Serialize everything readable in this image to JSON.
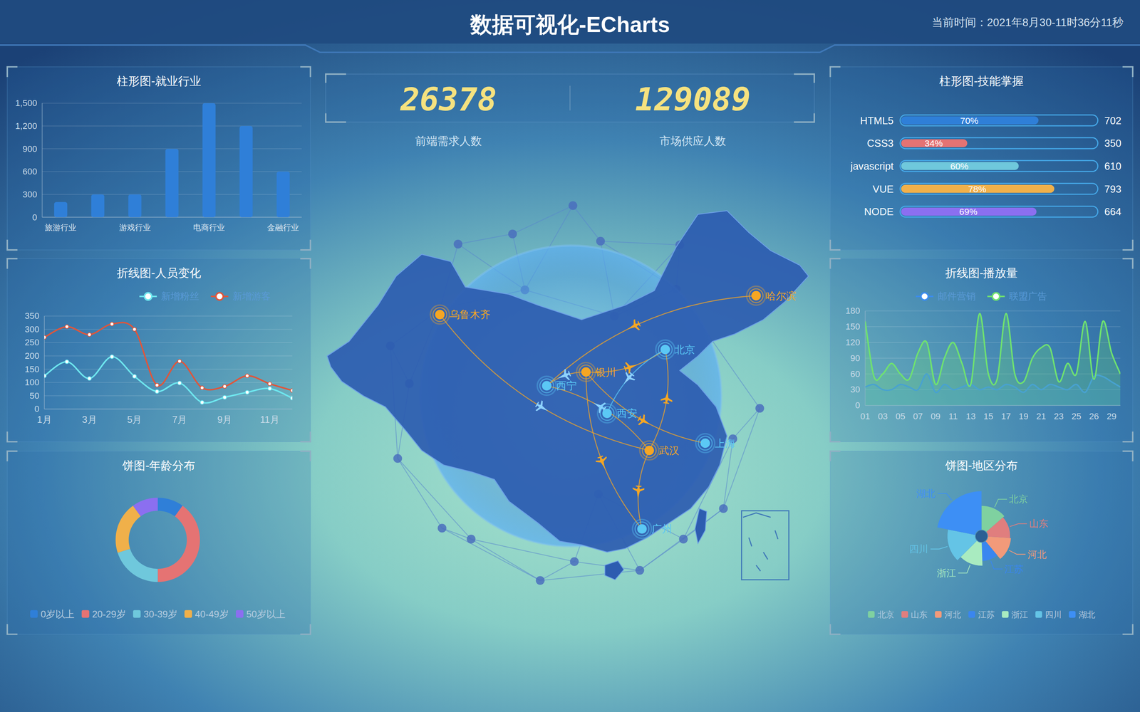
{
  "header": {
    "title": "数据可视化-ECharts",
    "time": "当前时间：2021年8月30-11时36分11秒"
  },
  "kpis": [
    {
      "value": 26378,
      "label": "前端需求人数"
    },
    {
      "value": 129089,
      "label": "市场供应人数"
    }
  ],
  "chart_data": [
    {
      "type": "bar",
      "title": "柱形图-就业行业",
      "categories": [
        "旅游行业",
        null,
        "游戏行业",
        null,
        "电商行业",
        null,
        "金融行业"
      ],
      "values": [
        200,
        300,
        300,
        900,
        1500,
        1200,
        600
      ],
      "color": "#2f7fd8",
      "ylim": [
        0,
        1500
      ],
      "yticks": [
        0,
        300,
        600,
        900,
        {
          "value": 1200,
          "label": "1,200"
        },
        {
          "value": 1500,
          "label": "1,500"
        }
      ],
      "grid": true
    },
    {
      "type": "line",
      "title": "折线图-人员变化",
      "categories": [
        "1月",
        null,
        "3月",
        null,
        "5月",
        null,
        "7月",
        null,
        "9月",
        null,
        "11月",
        null
      ],
      "series": [
        {
          "name": "新增粉丝",
          "color": "#6ee7ef",
          "values": [
            125,
            178,
            115,
            197,
            123,
            66,
            98,
            25,
            44,
            63,
            77,
            41
          ]
        },
        {
          "name": "新增游客",
          "color": "#e0553a",
          "values": [
            270,
            310,
            280,
            320,
            300,
            90,
            180,
            80,
            85,
            125,
            95,
            70
          ]
        }
      ],
      "ylim": [
        0,
        350
      ],
      "yticks": [
        0,
        50,
        100,
        150,
        200,
        250,
        300,
        350
      ],
      "grid": true,
      "legend": "top",
      "marker": "circle"
    },
    {
      "type": "pie",
      "title": "饼图-年龄分布",
      "categories": [
        "0岁以上",
        "20-29岁",
        "30-39岁",
        "40-49岁",
        "50岁以上"
      ],
      "values": [
        10,
        40,
        20,
        20,
        10
      ],
      "colors": [
        "#2f7fd8",
        "#e57373",
        "#6fc8dc",
        "#f0b04a",
        "#8b6ff0"
      ],
      "legend": "bottom"
    },
    {
      "type": "bar",
      "title": "柱形图-技能掌握",
      "orientation": "horizontal",
      "categories": [
        "HTML5",
        "CSS3",
        "javascript",
        "VUE",
        "NODE"
      ],
      "values": [
        70,
        34,
        60,
        78,
        69
      ],
      "value_labels": [
        "70%",
        "34%",
        "60%",
        "78%",
        "69%"
      ],
      "counts": [
        702,
        350,
        610,
        793,
        664
      ],
      "colors": [
        "#2f7fd8",
        "#e57373",
        "#6fc8dc",
        "#f0b04a",
        "#8b6ff0"
      ],
      "xlim": [
        0,
        100
      ],
      "tick_labels": "y",
      "data_labels": true
    },
    {
      "type": "area",
      "title": "折线图-播放量",
      "categories": [
        "01",
        null,
        "03",
        null,
        "05",
        null,
        "07",
        null,
        "09",
        null,
        "11",
        null,
        "13",
        null,
        "15",
        null,
        "17",
        null,
        "19",
        null,
        "21",
        null,
        "23",
        null,
        "25",
        null,
        "26",
        null,
        "29",
        null
      ],
      "series": [
        {
          "name": "邮件营销",
          "color": "#3b8cf0",
          "values": [
            35,
            40,
            30,
            30,
            40,
            35,
            30,
            60,
            25,
            40,
            30,
            35,
            40,
            30,
            35,
            30,
            40,
            35,
            25,
            40,
            30,
            40,
            35,
            30,
            40,
            25,
            55,
            55,
            45,
            35
          ]
        },
        {
          "name": "联盟广告",
          "color": "#6fe26f",
          "values": [
            160,
            55,
            60,
            80,
            60,
            50,
            100,
            120,
            40,
            90,
            120,
            80,
            40,
            175,
            60,
            50,
            175,
            60,
            45,
            90,
            110,
            110,
            45,
            80,
            60,
            160,
            50,
            160,
            100,
            60
          ]
        }
      ],
      "ylim": [
        0,
        180
      ],
      "yticks": [
        0,
        30,
        60,
        90,
        120,
        150,
        180
      ],
      "grid": true,
      "legend": "top"
    },
    {
      "type": "rose",
      "title": "饼图-地区分布",
      "categories": [
        "北京",
        "山东",
        "河北",
        "江苏",
        "浙江",
        "四川",
        "湖北"
      ],
      "values": [
        26,
        24,
        25,
        20,
        25,
        30,
        42
      ],
      "colors": [
        "#7fd1a0",
        "#e07e7e",
        "#f29a7a",
        "#3a86ef",
        "#a9ebc0",
        "#64c4e6",
        "#3d8ff5"
      ],
      "legend": "bottom"
    }
  ],
  "map": {
    "cities": [
      {
        "name": "乌鲁木齐",
        "color": "#f5a623"
      },
      {
        "name": "哈尔滨",
        "color": "#f5a623"
      },
      {
        "name": "北京",
        "color": "#5bc8f5"
      },
      {
        "name": "银川",
        "color": "#f5a623"
      },
      {
        "name": "西宁",
        "color": "#5bc8f5"
      },
      {
        "name": "西安",
        "color": "#5bc8f5"
      },
      {
        "name": "武汉",
        "color": "#f5a623"
      },
      {
        "name": "上海",
        "color": "#5bc8f5"
      },
      {
        "name": "广州",
        "color": "#5bc8f5"
      }
    ],
    "routes": [
      {
        "from": "乌鲁木齐",
        "to": "武汉"
      },
      {
        "from": "哈尔滨",
        "to": "西宁"
      },
      {
        "from": "银川",
        "to": "北京"
      },
      {
        "from": "银川",
        "to": "西宁"
      },
      {
        "from": "银川",
        "to": "上海"
      },
      {
        "from": "银川",
        "to": "广州"
      },
      {
        "from": "武汉",
        "to": "西宁"
      },
      {
        "from": "武汉",
        "to": "北京"
      },
      {
        "from": "武汉",
        "to": "广州"
      },
      {
        "from": "北京",
        "to": "西安"
      }
    ]
  }
}
